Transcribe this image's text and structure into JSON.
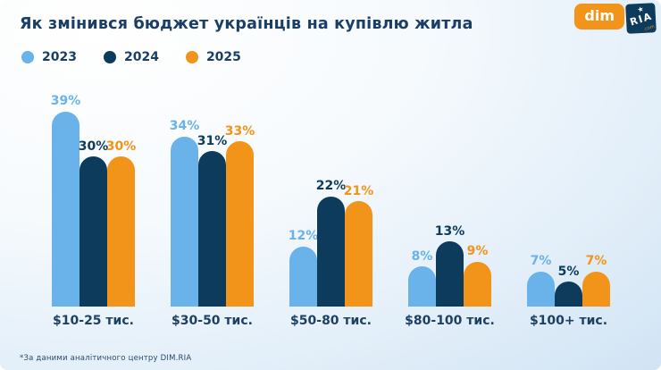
{
  "header": {
    "title": "Як змінився бюджет українців на купівлю житла"
  },
  "logo": {
    "dim": "dim",
    "ria": "RIA",
    "tld": ".com",
    "dim_bg": "#f3941a",
    "ria_bg": "#0d3b5c"
  },
  "chart_data": {
    "type": "bar",
    "title": "Як змінився бюджет українців на купівлю житла",
    "categories": [
      "$10-25 тис.",
      "$30-50 тис.",
      "$50-80 тис.",
      "$80-100 тис.",
      "$100+ тис."
    ],
    "series": [
      {
        "name": "2023",
        "color": "#6ab2ea",
        "values": [
          39,
          34,
          12,
          8,
          7
        ]
      },
      {
        "name": "2024",
        "color": "#0d3b5c",
        "values": [
          30,
          31,
          22,
          13,
          5
        ]
      },
      {
        "name": "2025",
        "color": "#f3941a",
        "values": [
          30,
          33,
          21,
          9,
          7
        ]
      }
    ],
    "value_suffix": "%",
    "ylim": [
      0,
      40
    ],
    "grid": false,
    "legend_position": "top-left",
    "value_labels": "above-bars"
  },
  "footer": {
    "note": "*За даними аналітичного центру DIM.RIA"
  }
}
